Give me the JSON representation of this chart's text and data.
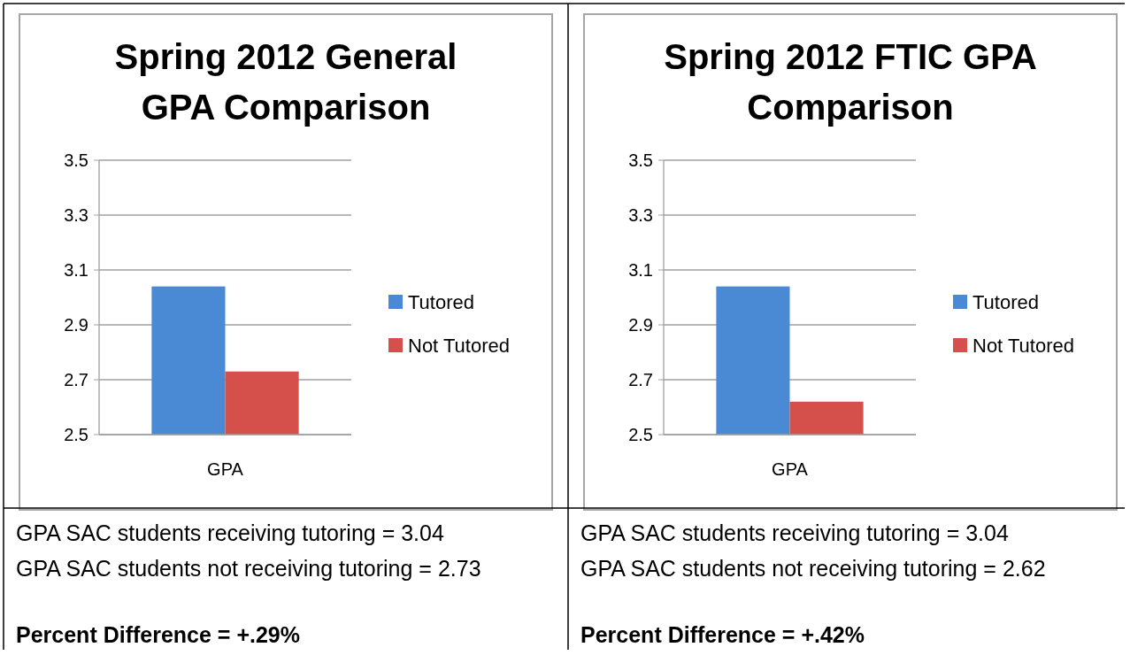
{
  "chart_data": [
    {
      "type": "bar",
      "title": "Spring 2012 General GPA Comparison",
      "categories": [
        "GPA"
      ],
      "series": [
        {
          "name": "Tutored",
          "color": "#4a8ad4",
          "values": [
            3.04
          ]
        },
        {
          "name": "Not Tutored",
          "color": "#d5504a",
          "values": [
            2.73
          ]
        }
      ],
      "ylim": [
        2.5,
        3.5
      ],
      "yticks": [
        2.5,
        2.7,
        2.9,
        3.1,
        3.3,
        3.5
      ],
      "grid": "y",
      "legend": "right",
      "annotations": [
        "GPA SAC students receiving tutoring = 3.04",
        "GPA SAC students not receiving tutoring = 2.73",
        "Percent Difference = +.29%"
      ]
    },
    {
      "type": "bar",
      "title": "Spring 2012 FTIC GPA Comparison",
      "categories": [
        "GPA"
      ],
      "series": [
        {
          "name": "Tutored",
          "color": "#4a8ad4",
          "values": [
            3.04
          ]
        },
        {
          "name": "Not Tutored",
          "color": "#d5504a",
          "values": [
            2.62
          ]
        }
      ],
      "ylim": [
        2.5,
        3.5
      ],
      "yticks": [
        2.5,
        2.7,
        2.9,
        3.1,
        3.3,
        3.5
      ],
      "grid": "y",
      "legend": "right",
      "annotations": [
        "GPA SAC students receiving tutoring = 3.04",
        "GPA SAC students not receiving tutoring = 2.62",
        "Percent Difference = +.42%"
      ]
    }
  ]
}
